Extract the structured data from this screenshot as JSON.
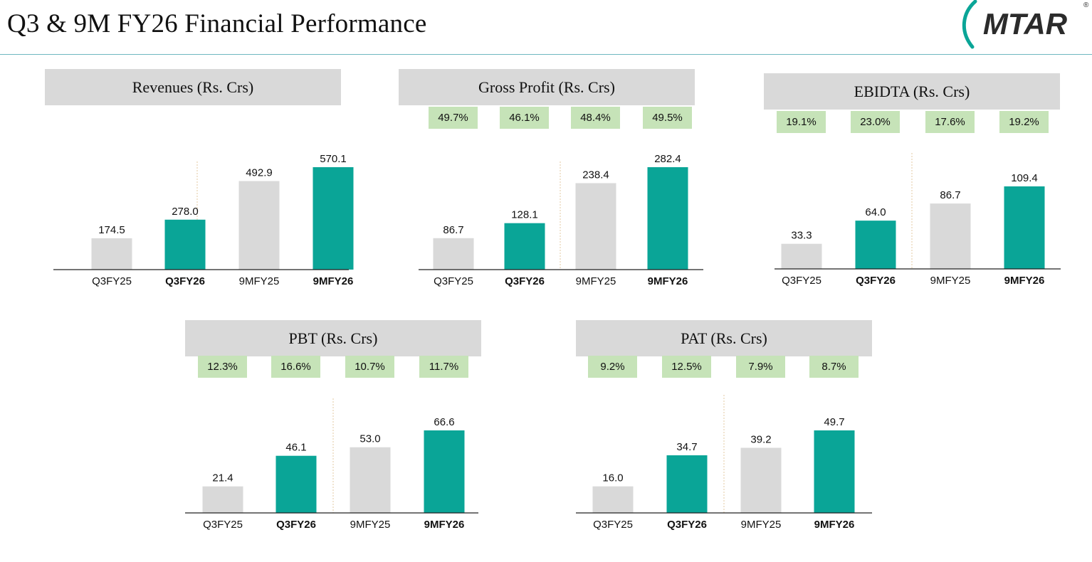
{
  "page": {
    "title": "Q3 & 9M FY26 Financial Performance",
    "logo_text": "MTAR",
    "logo_mark": "®"
  },
  "colors": {
    "prior": "#d9d9d9",
    "current": "#0aa597",
    "header_bg": "#d9d9d9",
    "badge_bg": "#c6e3b8",
    "rule": "#6fb8c0"
  },
  "chart_data": [
    {
      "type": "bar",
      "title": "Revenues (Rs. Crs)",
      "categories": [
        "Q3FY25",
        "Q3FY26",
        "9MFY25",
        "9MFY26"
      ],
      "values": [
        174.5,
        278.0,
        492.9,
        570.1
      ],
      "value_labels": [
        "174.5",
        "278.0",
        "492.9",
        "570.1"
      ],
      "margins": [],
      "highlight": [
        false,
        true,
        false,
        true
      ],
      "ylim": [
        0,
        570.1
      ]
    },
    {
      "type": "bar",
      "title": "Gross Profit (Rs. Crs)",
      "categories": [
        "Q3FY25",
        "Q3FY26",
        "9MFY25",
        "9MFY26"
      ],
      "values": [
        86.7,
        128.1,
        238.4,
        282.4
      ],
      "value_labels": [
        "86.7",
        "128.1",
        "238.4",
        "282.4"
      ],
      "margins": [
        "49.7%",
        "46.1%",
        "48.4%",
        "49.5%"
      ],
      "highlight": [
        false,
        true,
        false,
        true
      ],
      "ylim": [
        0,
        282.4
      ]
    },
    {
      "type": "bar",
      "title": "EBIDTA (Rs. Crs)",
      "categories": [
        "Q3FY25",
        "Q3FY26",
        "9MFY25",
        "9MFY26"
      ],
      "values": [
        33.3,
        64.0,
        86.7,
        109.4
      ],
      "value_labels": [
        "33.3",
        "64.0",
        "86.7",
        "109.4"
      ],
      "margins": [
        "19.1%",
        "23.0%",
        "17.6%",
        "19.2%"
      ],
      "highlight": [
        false,
        true,
        false,
        true
      ],
      "ylim": [
        0,
        109.4
      ]
    },
    {
      "type": "bar",
      "title": "PBT (Rs. Crs)",
      "categories": [
        "Q3FY25",
        "Q3FY26",
        "9MFY25",
        "9MFY26"
      ],
      "values": [
        21.4,
        46.1,
        53.0,
        66.6
      ],
      "value_labels": [
        "21.4",
        "46.1",
        "53.0",
        "66.6"
      ],
      "margins": [
        "12.3%",
        "16.6%",
        "10.7%",
        "11.7%"
      ],
      "highlight": [
        false,
        true,
        false,
        true
      ],
      "ylim": [
        0,
        66.6
      ]
    },
    {
      "type": "bar",
      "title": "PAT (Rs. Crs)",
      "categories": [
        "Q3FY25",
        "Q3FY26",
        "9MFY25",
        "9MFY26"
      ],
      "values": [
        16.0,
        34.7,
        39.2,
        49.7
      ],
      "value_labels": [
        "16.0",
        "34.7",
        "39.2",
        "49.7"
      ],
      "margins": [
        "9.2%",
        "12.5%",
        "7.9%",
        "8.7%"
      ],
      "highlight": [
        false,
        true,
        false,
        true
      ],
      "ylim": [
        0,
        49.7
      ]
    }
  ]
}
